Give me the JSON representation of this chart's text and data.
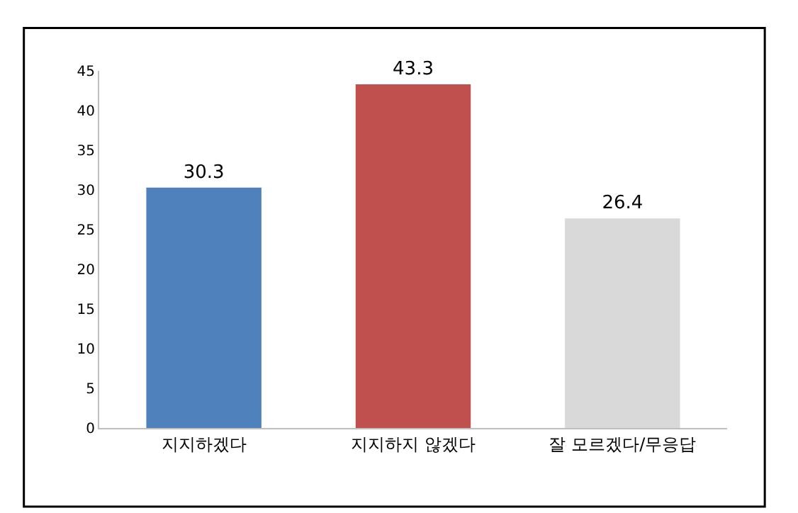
{
  "chart_data": {
    "type": "bar",
    "categories": [
      "지지하겠다",
      "지지하지 않겠다",
      "잘 모르겠다/무응답"
    ],
    "values": [
      30.3,
      43.3,
      26.4
    ],
    "colors": [
      "#4f81bd",
      "#c0504d",
      "#d9d9d9"
    ],
    "ylim": [
      0,
      45
    ],
    "yticks": [
      0,
      5,
      10,
      15,
      20,
      25,
      30,
      35,
      40,
      45
    ],
    "data_labels": true
  }
}
